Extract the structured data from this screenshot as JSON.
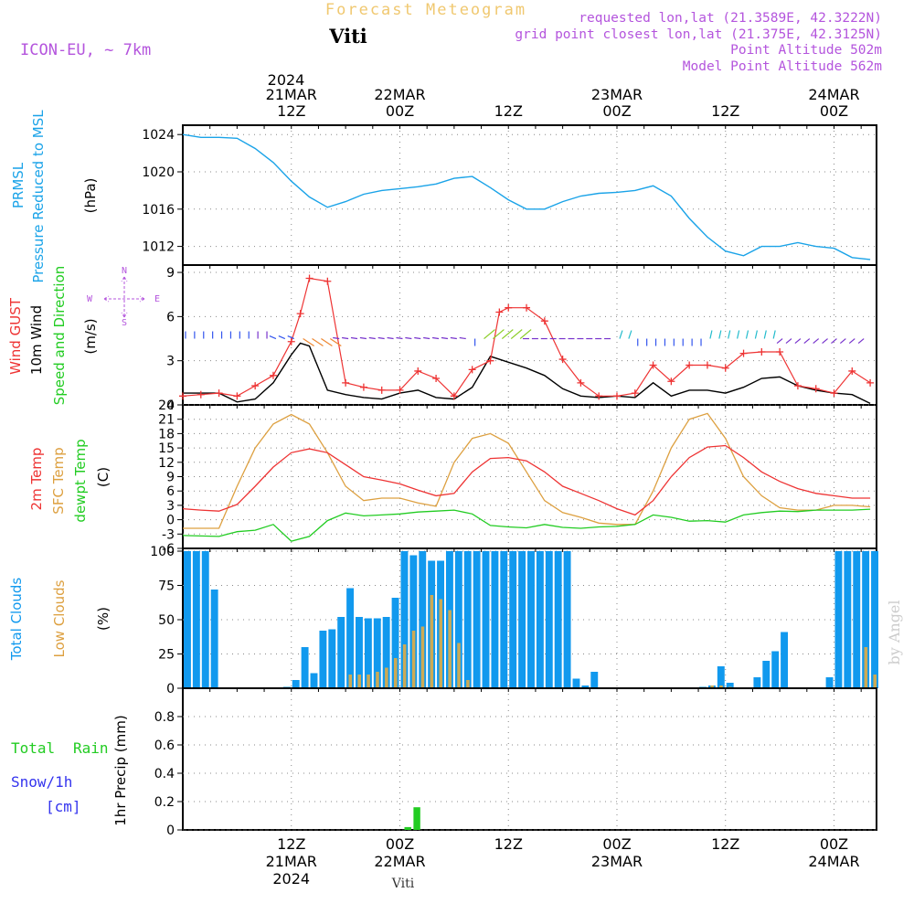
{
  "header": {
    "title": "Forecast Meteogram",
    "location": "Viti",
    "model": "ICON-EU, ~ 7km",
    "requested": "requested lon,lat (21.3589E, 42.3222N)",
    "gridpoint": "grid point closest lon,lat (21.375E, 42.3125N)",
    "point_alt": "Point Altitude 502m",
    "model_alt": "Model Point Altitude 562m",
    "credit": "by Angel",
    "footer": "Viti"
  },
  "time_axis": {
    "top_year": "2024",
    "labels": [
      {
        "hour": 12,
        "l1": "21MAR",
        "l2": "12Z"
      },
      {
        "hour": 24,
        "l1": "22MAR",
        "l2": "00Z"
      },
      {
        "hour": 36,
        "l1": "",
        "l2": "12Z"
      },
      {
        "hour": 48,
        "l1": "23MAR",
        "l2": "00Z"
      },
      {
        "hour": 60,
        "l1": "",
        "l2": "12Z"
      },
      {
        "hour": 72,
        "l1": "24MAR",
        "l2": "00Z"
      }
    ],
    "bottom": [
      {
        "hour": 12,
        "l1": "12Z",
        "l2": "21MAR",
        "l3": "2024"
      },
      {
        "hour": 24,
        "l1": "00Z",
        "l2": "22MAR"
      },
      {
        "hour": 36,
        "l1": "12Z",
        "l2": ""
      },
      {
        "hour": 48,
        "l1": "00Z",
        "l2": "23MAR"
      },
      {
        "hour": 60,
        "l1": "12Z",
        "l2": ""
      },
      {
        "hour": 72,
        "l1": "00Z",
        "l2": "24MAR"
      }
    ]
  },
  "colors": {
    "pressure": "#1aa3e8",
    "gust": "#ee3333",
    "wind": "#000000",
    "temp": "#ee3333",
    "sfc": "#dda040",
    "dew": "#22cc22",
    "total_cloud": "#1199ee",
    "low_cloud": "#ccaa55",
    "rain": "#22cc22",
    "snow": "#3333ee",
    "purple": "#b455dd",
    "title": "#f0c870"
  },
  "chart_data": [
    {
      "type": "line",
      "panel": "pressure",
      "labels": [
        "PRMSL",
        "Pressure Reduced to MSL",
        "(hPa)"
      ],
      "ylim": [
        1010,
        1025
      ],
      "yticks": [
        1012,
        1016,
        1020,
        1024
      ],
      "x": [
        0,
        2,
        4,
        6,
        8,
        10,
        12,
        14,
        16,
        18,
        20,
        22,
        24,
        26,
        28,
        30,
        32,
        34,
        36,
        38,
        40,
        42,
        44,
        46,
        48,
        50,
        52,
        54,
        56,
        58,
        60,
        62,
        64,
        66,
        68,
        70,
        72,
        74,
        76
      ],
      "values": [
        1024,
        1023.7,
        1023.7,
        1023.6,
        1022.5,
        1021,
        1019,
        1017.3,
        1016.2,
        1016.8,
        1017.6,
        1018,
        1018.2,
        1018.4,
        1018.7,
        1019.3,
        1019.5,
        1018.3,
        1017,
        1016,
        1016,
        1016.8,
        1017.4,
        1017.7,
        1017.8,
        1018,
        1018.5,
        1017.4,
        1015,
        1013,
        1011.5,
        1011,
        1012,
        1012,
        1012.4,
        1012,
        1011.8,
        1010.8,
        1010.6
      ]
    },
    {
      "type": "line",
      "panel": "wind",
      "labels": [
        "Wind GUST",
        "10m Wind",
        "Speed and Direction",
        "(m/s)"
      ],
      "compass": {
        "n": "N",
        "s": "S",
        "e": "E",
        "w": "W"
      },
      "ylim": [
        0,
        9.5
      ],
      "yticks": [
        0,
        3,
        6,
        9
      ],
      "x": [
        0,
        2,
        4,
        6,
        8,
        10,
        12,
        13,
        14,
        16,
        18,
        20,
        22,
        24,
        26,
        28,
        30,
        32,
        34,
        35,
        36,
        38,
        40,
        42,
        44,
        46,
        48,
        50,
        52,
        54,
        56,
        58,
        60,
        62,
        64,
        66,
        68,
        70,
        72,
        74,
        76
      ],
      "series": [
        {
          "name": "Wind GUST",
          "values": [
            0.6,
            0.7,
            0.8,
            0.6,
            1.3,
            2,
            4.3,
            6.2,
            8.6,
            8.4,
            1.5,
            1.2,
            1,
            1,
            2.3,
            1.8,
            0.6,
            2.4,
            3,
            6.3,
            6.6,
            6.6,
            5.7,
            3.1,
            1.5,
            0.6,
            0.6,
            0.8,
            2.7,
            1.6,
            2.7,
            2.7,
            2.5,
            3.5,
            3.6,
            3.6,
            1.3,
            1.1,
            0.8,
            2.3,
            1.5
          ]
        },
        {
          "name": "10m Wind",
          "values": [
            0.8,
            0.8,
            0.8,
            0.2,
            0.4,
            1.5,
            3.4,
            4.2,
            4,
            1,
            0.7,
            0.5,
            0.4,
            0.8,
            1,
            0.5,
            0.4,
            1.2,
            3.3,
            3.1,
            2.9,
            2.5,
            2,
            1.1,
            0.6,
            0.5,
            0.6,
            0.5,
            1.5,
            0.6,
            1,
            1,
            0.8,
            1.2,
            1.8,
            1.9,
            1.3,
            1,
            0.8,
            0.7,
            0.1
          ]
        }
      ]
    },
    {
      "type": "line",
      "panel": "temperature",
      "labels": [
        "2m Temp",
        "SFC Temp",
        "dewpt Temp",
        "(C)"
      ],
      "ylim": [
        -6,
        24
      ],
      "yticks": [
        -6,
        -3,
        0,
        3,
        6,
        9,
        12,
        15,
        18,
        21,
        24
      ],
      "x": [
        0,
        2,
        4,
        6,
        8,
        10,
        12,
        14,
        16,
        18,
        20,
        22,
        24,
        26,
        28,
        30,
        32,
        34,
        36,
        38,
        40,
        42,
        44,
        46,
        48,
        50,
        52,
        54,
        56,
        58,
        60,
        62,
        64,
        66,
        68,
        70,
        72,
        74,
        76
      ],
      "series": [
        {
          "name": "2m Temp",
          "values": [
            2.3,
            2,
            1.8,
            3.2,
            7,
            11,
            14,
            14.8,
            14,
            11.5,
            9,
            8.3,
            7.5,
            6.2,
            5,
            5.5,
            10,
            12.8,
            13,
            12.3,
            10,
            7,
            5.5,
            4,
            2.3,
            1,
            4,
            9,
            13,
            15.2,
            15.5,
            13,
            10,
            8,
            6.5,
            5.5,
            5,
            4.5,
            4.5
          ]
        },
        {
          "name": "SFC Temp",
          "values": [
            -1.8,
            -1.8,
            -1.8,
            7,
            15,
            20,
            22,
            20,
            14,
            7,
            4,
            4.5,
            4.5,
            3.5,
            2.8,
            12,
            17,
            18,
            16,
            10,
            4,
            1.5,
            0.5,
            -0.7,
            -1,
            -1,
            6,
            15,
            21,
            22.2,
            17,
            9,
            5,
            2.5,
            2,
            2,
            3,
            3,
            2.7
          ]
        },
        {
          "name": "dewpt Temp",
          "values": [
            -3.3,
            -3.4,
            -3.5,
            -2.5,
            -2.2,
            -1,
            -4.5,
            -3.5,
            -0.2,
            1.4,
            0.8,
            1,
            1.2,
            1.6,
            1.8,
            2,
            1.2,
            -1.2,
            -1.5,
            -1.7,
            -1,
            -1.6,
            -1.8,
            -1.5,
            -1.4,
            -1,
            1,
            0.5,
            -0.3,
            -0.2,
            -0.5,
            1,
            1.5,
            1.8,
            1.7,
            2,
            2,
            2,
            2.2
          ]
        }
      ]
    },
    {
      "type": "bar",
      "panel": "clouds",
      "labels": [
        "Total Clouds",
        "Low Clouds",
        "(%)"
      ],
      "ylim": [
        0,
        102
      ],
      "yticks": [
        0,
        25,
        50,
        75,
        100
      ],
      "x": [
        0,
        1,
        2,
        3,
        4,
        5,
        6,
        7,
        8,
        9,
        10,
        11,
        12,
        13,
        14,
        15,
        16,
        17,
        18,
        19,
        20,
        21,
        22,
        23,
        24,
        25,
        26,
        27,
        28,
        29,
        30,
        31,
        32,
        33,
        34,
        35,
        36,
        37,
        38,
        39,
        40,
        41,
        42,
        43,
        44,
        45,
        46,
        47,
        48,
        49,
        50,
        51,
        52,
        53,
        54,
        55,
        56,
        57,
        58,
        59,
        60,
        61,
        62,
        63,
        64,
        65,
        66,
        67,
        68,
        69,
        70,
        71,
        72,
        73,
        74,
        75,
        76
      ],
      "series": [
        {
          "name": "Total Clouds",
          "values": [
            100,
            100,
            100,
            72,
            0,
            0,
            0,
            0,
            0,
            0,
            0,
            1,
            6,
            30,
            11,
            42,
            43,
            52,
            73,
            52,
            51,
            51,
            52,
            66,
            100,
            97,
            100,
            93,
            93,
            100,
            100,
            100,
            100,
            100,
            100,
            100,
            100,
            100,
            100,
            100,
            100,
            100,
            100,
            7,
            2,
            12,
            0,
            0,
            0,
            0,
            0,
            0,
            0,
            0,
            0,
            0,
            0,
            1,
            2,
            16,
            4,
            0,
            0,
            8,
            20,
            27,
            41,
            0,
            0,
            0,
            0,
            8,
            100,
            100,
            100,
            100,
            100
          ]
        },
        {
          "name": "Low Clouds",
          "values": [
            0,
            0,
            0,
            0,
            0,
            0,
            0,
            0,
            0,
            0,
            0,
            0,
            0,
            0,
            0,
            0,
            0,
            0,
            10,
            10,
            10,
            12,
            15,
            22,
            32,
            42,
            45,
            68,
            65,
            57,
            33,
            6,
            0,
            0,
            0,
            0,
            0,
            0,
            0,
            0,
            0,
            0,
            0,
            0,
            0,
            0,
            0,
            0,
            0,
            0,
            0,
            0,
            0,
            0,
            0,
            0,
            0,
            0,
            2,
            2,
            1,
            0,
            0,
            0,
            0,
            0,
            0,
            0,
            0,
            0,
            0,
            0,
            0,
            0,
            0,
            30,
            10
          ]
        }
      ]
    },
    {
      "type": "bar",
      "panel": "precip",
      "labels": [
        "Total",
        "Rain",
        "Snow/1h",
        "[cm]",
        "1hr Precip (mm)"
      ],
      "ylim": [
        0,
        1.0
      ],
      "yticks": [
        0,
        0.2,
        0.4,
        0.6,
        0.8
      ],
      "x": [
        24,
        25
      ],
      "series": [
        {
          "name": "Total Rain",
          "values": [
            0.02,
            0.16
          ]
        }
      ]
    }
  ]
}
